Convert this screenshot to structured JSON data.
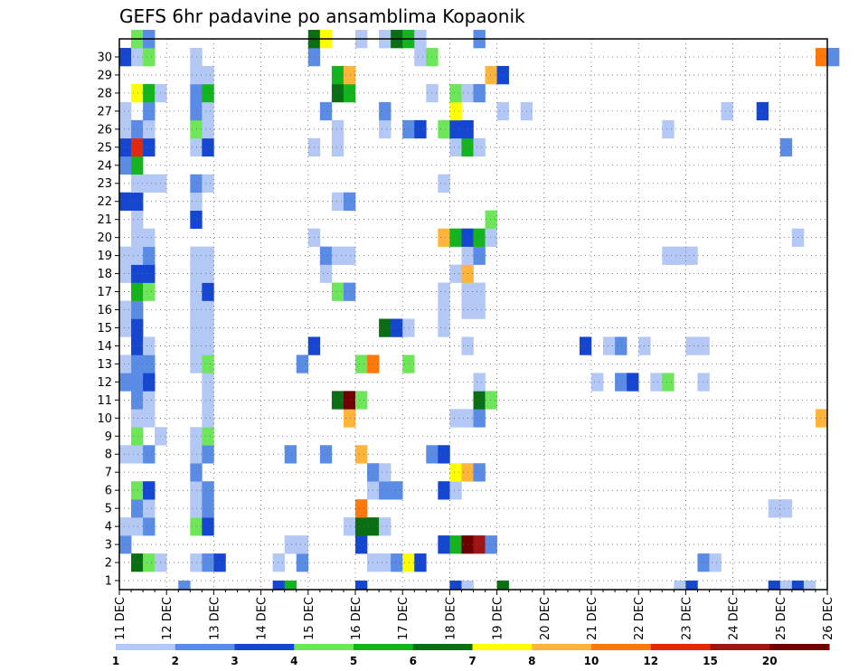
{
  "chart_data": {
    "type": "heatmap",
    "title": "GEFS 6hr padavine po ansamblima Kopaonik",
    "x_tick_labels": [
      "11 DEC",
      "12 DEC",
      "13 DEC",
      "14 DEC",
      "15 DEC",
      "16 DEC",
      "17 DEC",
      "18 DEC",
      "19 DEC",
      "20 DEC",
      "21 DEC",
      "22 DEC",
      "23 DEC",
      "24 DEC",
      "25 DEC",
      "26 DEC"
    ],
    "y_tick_labels": [
      "1",
      "2",
      "3",
      "4",
      "5",
      "6",
      "7",
      "8",
      "9",
      "10",
      "11",
      "12",
      "13",
      "14",
      "15",
      "16",
      "17",
      "18",
      "19",
      "20",
      "21",
      "22",
      "23",
      "24",
      "25",
      "26",
      "27",
      "28",
      "29",
      "30"
    ],
    "time_steps_per_day": 4,
    "colorbar": {
      "labels": [
        "1",
        "2",
        "3",
        "4",
        "5",
        "6",
        "7",
        "8",
        "10",
        "12",
        "15",
        "20"
      ],
      "colors": [
        "#b4c8f5",
        "#5a8ce6",
        "#1446d2",
        "#6ee65a",
        "#14b41e",
        "#0a6e14",
        "#ffff00",
        "#ffb43c",
        "#ff780a",
        "#e6280a",
        "#a01414",
        "#6e0000"
      ]
    },
    "cells": [
      [
        "#0a6e14",
        1,
        1
      ],
      [
        "#6ee65a",
        1,
        2
      ],
      [
        "#b4c8f5",
        1,
        3
      ],
      [
        "#b4c8f5",
        1,
        6
      ],
      [
        "#5a8ce6",
        1,
        7
      ],
      [
        "#1446d2",
        1,
        8
      ],
      [
        "#b4c8f5",
        1,
        13
      ],
      [
        "#5a8ce6",
        1,
        15
      ],
      [
        "#b4c8f5",
        1,
        21
      ],
      [
        "#b4c8f5",
        1,
        22
      ],
      [
        "#5a8ce6",
        1,
        23
      ],
      [
        "#ffff00",
        1,
        24
      ],
      [
        "#1446d2",
        1,
        25
      ],
      [
        "#5a8ce6",
        1,
        49
      ],
      [
        "#b4c8f5",
        1,
        50
      ],
      [
        "#5a8ce6",
        2,
        0
      ],
      [
        "#b4c8f5",
        2,
        14
      ],
      [
        "#b4c8f5",
        2,
        15
      ],
      [
        "#1446d2",
        2,
        20
      ],
      [
        "#1446d2",
        2,
        27
      ],
      [
        "#14b41e",
        2,
        28
      ],
      [
        "#6e0000",
        2,
        29
      ],
      [
        "#a01414",
        2,
        30
      ],
      [
        "#5a8ce6",
        2,
        31
      ],
      [
        "#b4c8f5",
        3,
        0
      ],
      [
        "#b4c8f5",
        3,
        1
      ],
      [
        "#5a8ce6",
        3,
        2
      ],
      [
        "#6ee65a",
        3,
        6
      ],
      [
        "#1446d2",
        3,
        7
      ],
      [
        "#b4c8f5",
        3,
        19
      ],
      [
        "#0a6e14",
        3,
        20
      ],
      [
        "#0a6e14",
        3,
        21
      ],
      [
        "#b4c8f5",
        3,
        22
      ],
      [
        "#5a8ce6",
        4,
        1
      ],
      [
        "#b4c8f5",
        4,
        2
      ],
      [
        "#b4c8f5",
        4,
        6
      ],
      [
        "#5a8ce6",
        4,
        7
      ],
      [
        "#ff780a",
        4,
        20
      ],
      [
        "#b4c8f5",
        4,
        55
      ],
      [
        "#b4c8f5",
        4,
        56
      ],
      [
        "#6ee65a",
        5,
        1
      ],
      [
        "#1446d2",
        5,
        2
      ],
      [
        "#b4c8f5",
        5,
        6
      ],
      [
        "#5a8ce6",
        5,
        7
      ],
      [
        "#b4c8f5",
        5,
        21
      ],
      [
        "#5a8ce6",
        5,
        22
      ],
      [
        "#5a8ce6",
        5,
        23
      ],
      [
        "#1446d2",
        5,
        27
      ],
      [
        "#b4c8f5",
        5,
        28
      ],
      [
        "#5a8ce6",
        6,
        6
      ],
      [
        "#5a8ce6",
        6,
        21
      ],
      [
        "#b4c8f5",
        6,
        22
      ],
      [
        "#ffff00",
        6,
        28
      ],
      [
        "#ffb43c",
        6,
        29
      ],
      [
        "#5a8ce6",
        6,
        30
      ],
      [
        "#b4c8f5",
        7,
        0
      ],
      [
        "#b4c8f5",
        7,
        1
      ],
      [
        "#5a8ce6",
        7,
        2
      ],
      [
        "#b4c8f5",
        7,
        6
      ],
      [
        "#5a8ce6",
        7,
        7
      ],
      [
        "#5a8ce6",
        7,
        14
      ],
      [
        "#5a8ce6",
        7,
        17
      ],
      [
        "#ffb43c",
        7,
        20
      ],
      [
        "#5a8ce6",
        7,
        26
      ],
      [
        "#1446d2",
        7,
        27
      ],
      [
        "#6ee65a",
        8,
        1
      ],
      [
        "#b4c8f5",
        8,
        3
      ],
      [
        "#b4c8f5",
        8,
        6
      ],
      [
        "#6ee65a",
        8,
        7
      ],
      [
        "#b4c8f5",
        9,
        1
      ],
      [
        "#b4c8f5",
        9,
        2
      ],
      [
        "#b4c8f5",
        9,
        7
      ],
      [
        "#ffb43c",
        9,
        19
      ],
      [
        "#b4c8f5",
        9,
        28
      ],
      [
        "#b4c8f5",
        9,
        29
      ],
      [
        "#5a8ce6",
        9,
        30
      ],
      [
        "#ffb43c",
        9,
        59
      ],
      [
        "#5a8ce6",
        10,
        1
      ],
      [
        "#b4c8f5",
        10,
        2
      ],
      [
        "#b4c8f5",
        10,
        7
      ],
      [
        "#0a6e14",
        10,
        18
      ],
      [
        "#6e0000",
        10,
        19
      ],
      [
        "#6ee65a",
        10,
        20
      ],
      [
        "#0a6e14",
        10,
        30
      ],
      [
        "#6ee65a",
        10,
        31
      ],
      [
        "#5a8ce6",
        11,
        0
      ],
      [
        "#5a8ce6",
        11,
        1
      ],
      [
        "#1446d2",
        11,
        2
      ],
      [
        "#b4c8f5",
        11,
        7
      ],
      [
        "#b4c8f5",
        11,
        30
      ],
      [
        "#b4c8f5",
        11,
        40
      ],
      [
        "#5a8ce6",
        11,
        42
      ],
      [
        "#1446d2",
        11,
        43
      ],
      [
        "#b4c8f5",
        11,
        45
      ],
      [
        "#6ee65a",
        11,
        46
      ],
      [
        "#b4c8f5",
        11,
        49
      ],
      [
        "#b4c8f5",
        12,
        0
      ],
      [
        "#5a8ce6",
        12,
        1
      ],
      [
        "#5a8ce6",
        12,
        2
      ],
      [
        "#b4c8f5",
        12,
        6
      ],
      [
        "#6ee65a",
        12,
        7
      ],
      [
        "#5a8ce6",
        12,
        15
      ],
      [
        "#6ee65a",
        12,
        20
      ],
      [
        "#ff780a",
        12,
        21
      ],
      [
        "#6ee65a",
        12,
        24
      ],
      [
        "#1446d2",
        13,
        1
      ],
      [
        "#b4c8f5",
        13,
        2
      ],
      [
        "#b4c8f5",
        13,
        6
      ],
      [
        "#b4c8f5",
        13,
        7
      ],
      [
        "#1446d2",
        13,
        16
      ],
      [
        "#b4c8f5",
        13,
        29
      ],
      [
        "#1446d2",
        13,
        39
      ],
      [
        "#b4c8f5",
        13,
        41
      ],
      [
        "#5a8ce6",
        13,
        42
      ],
      [
        "#b4c8f5",
        13,
        44
      ],
      [
        "#b4c8f5",
        13,
        48
      ],
      [
        "#b4c8f5",
        13,
        49
      ],
      [
        "#b4c8f5",
        14,
        0
      ],
      [
        "#1446d2",
        14,
        1
      ],
      [
        "#b4c8f5",
        14,
        6
      ],
      [
        "#b4c8f5",
        14,
        7
      ],
      [
        "#0a6e14",
        14,
        22
      ],
      [
        "#1446d2",
        14,
        23
      ],
      [
        "#b4c8f5",
        14,
        24
      ],
      [
        "#b4c8f5",
        14,
        27
      ],
      [
        "#b4c8f5",
        15,
        0
      ],
      [
        "#5a8ce6",
        15,
        1
      ],
      [
        "#b4c8f5",
        15,
        6
      ],
      [
        "#b4c8f5",
        15,
        7
      ],
      [
        "#b4c8f5",
        15,
        27
      ],
      [
        "#b4c8f5",
        15,
        29
      ],
      [
        "#b4c8f5",
        15,
        30
      ],
      [
        "#14b41e",
        16,
        1
      ],
      [
        "#6ee65a",
        16,
        2
      ],
      [
        "#b4c8f5",
        16,
        6
      ],
      [
        "#1446d2",
        16,
        7
      ],
      [
        "#6ee65a",
        16,
        18
      ],
      [
        "#5a8ce6",
        16,
        19
      ],
      [
        "#b4c8f5",
        16,
        27
      ],
      [
        "#b4c8f5",
        16,
        29
      ],
      [
        "#b4c8f5",
        16,
        30
      ],
      [
        "#b4c8f5",
        17,
        0
      ],
      [
        "#1446d2",
        17,
        1
      ],
      [
        "#1446d2",
        17,
        2
      ],
      [
        "#b4c8f5",
        17,
        6
      ],
      [
        "#b4c8f5",
        17,
        7
      ],
      [
        "#b4c8f5",
        17,
        17
      ],
      [
        "#b4c8f5",
        17,
        28
      ],
      [
        "#ffb43c",
        17,
        29
      ],
      [
        "#b4c8f5",
        18,
        0
      ],
      [
        "#b4c8f5",
        18,
        1
      ],
      [
        "#5a8ce6",
        18,
        2
      ],
      [
        "#b4c8f5",
        18,
        6
      ],
      [
        "#b4c8f5",
        18,
        7
      ],
      [
        "#5a8ce6",
        18,
        17
      ],
      [
        "#b4c8f5",
        18,
        18
      ],
      [
        "#b4c8f5",
        18,
        19
      ],
      [
        "#b4c8f5",
        18,
        29
      ],
      [
        "#5a8ce6",
        18,
        30
      ],
      [
        "#b4c8f5",
        18,
        46
      ],
      [
        "#b4c8f5",
        18,
        47
      ],
      [
        "#b4c8f5",
        18,
        48
      ],
      [
        "#b4c8f5",
        19,
        1
      ],
      [
        "#b4c8f5",
        19,
        2
      ],
      [
        "#b4c8f5",
        19,
        16
      ],
      [
        "#ffb43c",
        19,
        27
      ],
      [
        "#14b41e",
        19,
        28
      ],
      [
        "#1446d2",
        19,
        29
      ],
      [
        "#14b41e",
        19,
        30
      ],
      [
        "#b4c8f5",
        19,
        31
      ],
      [
        "#b4c8f5",
        19,
        57
      ],
      [
        "#b4c8f5",
        20,
        1
      ],
      [
        "#1446d2",
        20,
        6
      ],
      [
        "#6ee65a",
        20,
        31
      ],
      [
        "#1446d2",
        21,
        0
      ],
      [
        "#1446d2",
        21,
        1
      ],
      [
        "#b4c8f5",
        21,
        6
      ],
      [
        "#b4c8f5",
        21,
        18
      ],
      [
        "#5a8ce6",
        21,
        19
      ],
      [
        "#b4c8f5",
        22,
        1
      ],
      [
        "#b4c8f5",
        22,
        2
      ],
      [
        "#b4c8f5",
        22,
        3
      ],
      [
        "#5a8ce6",
        22,
        6
      ],
      [
        "#b4c8f5",
        22,
        7
      ],
      [
        "#b4c8f5",
        22,
        27
      ],
      [
        "#5a8ce6",
        23,
        0
      ],
      [
        "#14b41e",
        23,
        1
      ],
      [
        "#1446d2",
        24,
        0
      ],
      [
        "#e6280a",
        24,
        1
      ],
      [
        "#1446d2",
        24,
        2
      ],
      [
        "#b4c8f5",
        24,
        6
      ],
      [
        "#1446d2",
        24,
        7
      ],
      [
        "#b4c8f5",
        24,
        16
      ],
      [
        "#b4c8f5",
        24,
        18
      ],
      [
        "#b4c8f5",
        24,
        28
      ],
      [
        "#14b41e",
        24,
        29
      ],
      [
        "#b4c8f5",
        24,
        30
      ],
      [
        "#5a8ce6",
        24,
        56
      ],
      [
        "#b4c8f5",
        25,
        0
      ],
      [
        "#5a8ce6",
        25,
        1
      ],
      [
        "#b4c8f5",
        25,
        2
      ],
      [
        "#6ee65a",
        25,
        6
      ],
      [
        "#b4c8f5",
        25,
        7
      ],
      [
        "#b4c8f5",
        25,
        18
      ],
      [
        "#b4c8f5",
        25,
        22
      ],
      [
        "#5a8ce6",
        25,
        24
      ],
      [
        "#1446d2",
        25,
        25
      ],
      [
        "#6ee65a",
        25,
        27
      ],
      [
        "#1446d2",
        25,
        28
      ],
      [
        "#1446d2",
        25,
        29
      ],
      [
        "#b4c8f5",
        25,
        46
      ],
      [
        "#b4c8f5",
        26,
        0
      ],
      [
        "#5a8ce6",
        26,
        2
      ],
      [
        "#5a8ce6",
        26,
        6
      ],
      [
        "#b4c8f5",
        26,
        7
      ],
      [
        "#5a8ce6",
        26,
        17
      ],
      [
        "#5a8ce6",
        26,
        22
      ],
      [
        "#ffff00",
        26,
        28
      ],
      [
        "#b4c8f5",
        26,
        32
      ],
      [
        "#b4c8f5",
        26,
        34
      ],
      [
        "#b4c8f5",
        26,
        51
      ],
      [
        "#1446d2",
        26,
        54
      ],
      [
        "#ffff00",
        27,
        1
      ],
      [
        "#14b41e",
        27,
        2
      ],
      [
        "#b4c8f5",
        27,
        3
      ],
      [
        "#5a8ce6",
        27,
        6
      ],
      [
        "#14b41e",
        27,
        7
      ],
      [
        "#0a6e14",
        27,
        18
      ],
      [
        "#14b41e",
        27,
        19
      ],
      [
        "#b4c8f5",
        27,
        26
      ],
      [
        "#6ee65a",
        27,
        28
      ],
      [
        "#b4c8f5",
        27,
        29
      ],
      [
        "#5a8ce6",
        27,
        30
      ],
      [
        "#b4c8f5",
        28,
        6
      ],
      [
        "#b4c8f5",
        28,
        7
      ],
      [
        "#14b41e",
        28,
        18
      ],
      [
        "#ffb43c",
        28,
        19
      ],
      [
        "#ffb43c",
        28,
        31
      ],
      [
        "#1446d2",
        28,
        32
      ],
      [
        "#1446d2",
        29,
        0
      ],
      [
        "#b4c8f5",
        29,
        1
      ],
      [
        "#6ee65a",
        29,
        2
      ],
      [
        "#b4c8f5",
        29,
        6
      ],
      [
        "#5a8ce6",
        29,
        16
      ],
      [
        "#b4c8f5",
        29,
        25
      ],
      [
        "#6ee65a",
        29,
        26
      ],
      [
        "#ff780a",
        29,
        59
      ],
      [
        "#5a8ce6",
        29,
        60
      ],
      [
        "#6ee65a",
        30,
        1
      ],
      [
        "#5a8ce6",
        30,
        2
      ],
      [
        "#0a6e14",
        30,
        16
      ],
      [
        "#ffff00",
        30,
        17
      ],
      [
        "#b4c8f5",
        30,
        20
      ],
      [
        "#b4c8f5",
        30,
        22
      ],
      [
        "#0a6e14",
        30,
        23
      ],
      [
        "#14b41e",
        30,
        24
      ],
      [
        "#b4c8f5",
        30,
        25
      ],
      [
        "#5a8ce6",
        30,
        30
      ],
      [
        "#5a8ce6",
        0,
        5
      ],
      [
        "#1446d2",
        0,
        13
      ],
      [
        "#14b41e",
        0,
        14
      ],
      [
        "#1446d2",
        0,
        20
      ],
      [
        "#1446d2",
        0,
        28
      ],
      [
        "#b4c8f5",
        0,
        29
      ],
      [
        "#0a6e14",
        0,
        32
      ],
      [
        "#b4c8f5",
        0,
        47
      ],
      [
        "#1446d2",
        0,
        48
      ],
      [
        "#1446d2",
        0,
        55
      ],
      [
        "#b4c8f5",
        0,
        56
      ],
      [
        "#1446d2",
        0,
        57
      ],
      [
        "#b4c8f5",
        0,
        58
      ]
    ]
  }
}
